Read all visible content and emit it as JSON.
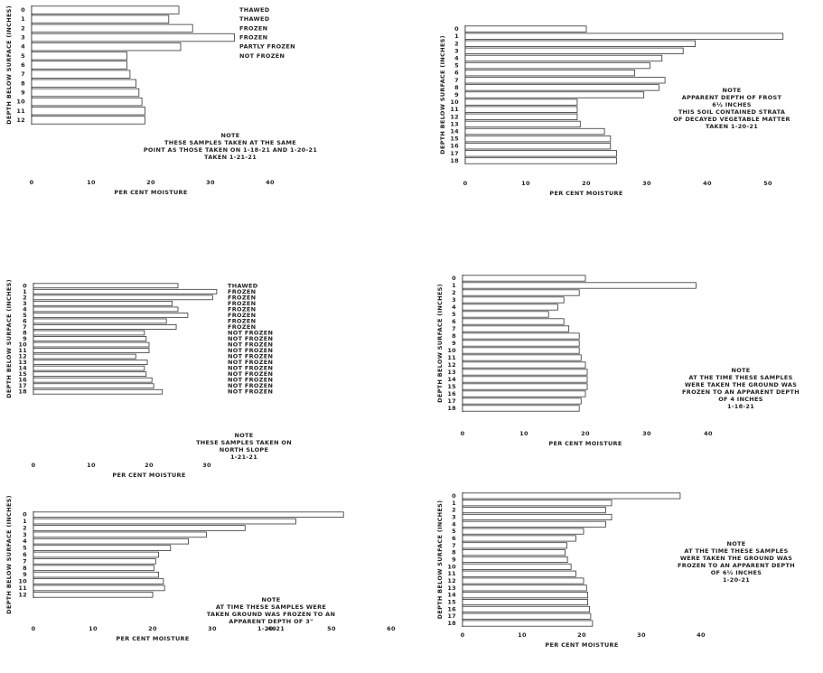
{
  "chart_data": [
    {
      "type": "bar",
      "orientation": "horizontal",
      "y_label": "DEPTH BELOW SURFACE (INCHES)",
      "x_label": "PER CENT MOISTURE",
      "categories": [
        "0",
        "1",
        "2",
        "3",
        "4",
        "5",
        "6",
        "7",
        "8",
        "9",
        "10",
        "11",
        "12"
      ],
      "values": [
        24.7,
        23,
        27,
        34,
        25,
        16,
        16,
        16.5,
        17.5,
        18,
        18.5,
        19,
        19
      ],
      "xlim": [
        0,
        40
      ],
      "xticks": [
        0,
        10,
        20,
        30,
        40
      ],
      "status_labels": [
        "THAWED",
        "THAWED",
        "FROZEN",
        "FROZEN",
        "PARTLY FROZEN",
        "NOT FROZEN"
      ],
      "note": [
        "NOTE",
        "THESE SAMPLES TAKEN AT THE SAME",
        "POINT AS THOSE TAKEN ON 1-18-21 AND 1-20-21",
        "TAKEN 1-21-21"
      ]
    },
    {
      "type": "bar",
      "orientation": "horizontal",
      "y_label": "DEPTH BELOW SURFACE (INCHES)",
      "x_label": "PER CENT MOISTURE",
      "categories": [
        "0",
        "1",
        "2",
        "3",
        "4",
        "5",
        "6",
        "7",
        "8",
        "9",
        "10",
        "11",
        "12",
        "13",
        "14",
        "15",
        "16",
        "17",
        "18"
      ],
      "values": [
        20,
        52.5,
        38,
        36,
        32.5,
        30.5,
        28,
        33,
        32,
        29.5,
        18.5,
        18.5,
        18.5,
        19,
        23,
        24,
        24,
        25,
        25
      ],
      "xlim": [
        0,
        50
      ],
      "xticks": [
        0,
        10,
        20,
        30,
        40,
        50
      ],
      "note": [
        "NOTE",
        "APPARENT DEPTH OF FROST",
        "6½ INCHES",
        "THIS SOIL CONTAINED STRATA",
        "OF DECAYED VEGETABLE MATTER",
        "TAKEN 1-20-21"
      ]
    },
    {
      "type": "bar",
      "orientation": "horizontal",
      "y_label": "DEPTH BELOW SURFACE (INCHES)",
      "x_label": "PER CENT MOISTURE",
      "categories": [
        "0",
        "1",
        "2",
        "3",
        "4",
        "5",
        "6",
        "7",
        "8",
        "9",
        "10",
        "11",
        "12",
        "13",
        "14",
        "15",
        "16",
        "17",
        "18"
      ],
      "values": [
        25,
        31.7,
        31,
        24,
        25,
        26.7,
        23,
        24.7,
        19.2,
        19.5,
        20,
        20,
        17.7,
        19.7,
        19.2,
        19.5,
        20.5,
        20.8,
        22.3
      ],
      "xlim": [
        0,
        30
      ],
      "xticks": [
        0,
        10,
        20,
        30
      ],
      "status_labels": [
        "THAWED",
        "FROZEN",
        "FROZEN",
        "FROZEN",
        "FROZEN",
        "FROZEN",
        "FROZEN",
        "FROZEN",
        "NOT FROZEN",
        "NOT FROZEN",
        "NOT FROZEN",
        "NOT FROZEN",
        "NOT FROZEN",
        "NOT FROZEN",
        "NOT FROZEN",
        "NOT FROZEN",
        "NOT FROZEN",
        "NOT FROZEN",
        "NOT FROZEN"
      ],
      "note": [
        "NOTE",
        "THESE SAMPLES TAKEN ON",
        "NORTH SLOPE",
        "1-21-21"
      ]
    },
    {
      "type": "bar",
      "orientation": "horizontal",
      "y_label": "DEPTH BELOW SURFACE (INCHES)",
      "x_label": "PER CENT MOISTURE",
      "categories": [
        "0",
        "1",
        "2",
        "3",
        "4",
        "5",
        "6",
        "7",
        "8",
        "9",
        "10",
        "11",
        "12",
        "13",
        "14",
        "15",
        "16",
        "17",
        "18"
      ],
      "values": [
        20,
        38,
        19,
        16.5,
        15.5,
        14,
        16.5,
        17.3,
        19,
        19,
        19,
        19.3,
        20,
        20.3,
        20.3,
        20.3,
        20,
        19.3,
        19
      ],
      "xlim": [
        0,
        40
      ],
      "xticks": [
        0,
        10,
        20,
        30,
        40
      ],
      "note": [
        "NOTE",
        "AT THE TIME THESE SAMPLES",
        "WERE TAKEN THE GROUND WAS",
        "FROZEN TO AN APPARENT DEPTH",
        "OF 4 INCHES",
        "1-18-21"
      ]
    },
    {
      "type": "bar",
      "orientation": "horizontal",
      "y_label": "DEPTH BELOW SURFACE (INCHES)",
      "x_label": "PER CENT MOISTURE",
      "categories": [
        "0",
        "1",
        "2",
        "3",
        "4",
        "5",
        "6",
        "7",
        "8",
        "9",
        "10",
        "11",
        "12"
      ],
      "values": [
        52,
        44,
        35.5,
        29,
        26,
        23,
        21,
        20.5,
        20.2,
        21,
        21.8,
        22,
        20
      ],
      "xlim": [
        0,
        60
      ],
      "xticks": [
        0,
        10,
        20,
        30,
        40,
        50,
        60
      ],
      "note": [
        "NOTE",
        "AT TIME THESE SAMPLES WERE",
        "TAKEN GROUND WAS FROZEN TO AN",
        "APPARENT DEPTH OF 3\"",
        "1-20-21"
      ]
    },
    {
      "type": "bar",
      "orientation": "horizontal",
      "y_label": "DEPTH BELOW SURFACE (INCHES)",
      "x_label": "PER CENT MOISTURE",
      "categories": [
        "0",
        "1",
        "2",
        "3",
        "4",
        "5",
        "6",
        "7",
        "8",
        "9",
        "10",
        "11",
        "12",
        "13",
        "14",
        "15",
        "16",
        "17",
        "18"
      ],
      "values": [
        36.5,
        25,
        24,
        25,
        24,
        20.3,
        19,
        17.5,
        17.2,
        17.6,
        18.2,
        19,
        20.3,
        20.8,
        21,
        21,
        21.3,
        21.5,
        21.8
      ],
      "xlim": [
        0,
        40
      ],
      "xticks": [
        0,
        10,
        20,
        30,
        40
      ],
      "note": [
        "NOTE",
        "AT THE TIME THESE SAMPLES",
        "WERE TAKEN THE GROUND WAS",
        "FROZEN TO AN APPARENT DEPTH",
        "OF 6½ INCHES",
        "1-20-21"
      ]
    }
  ]
}
